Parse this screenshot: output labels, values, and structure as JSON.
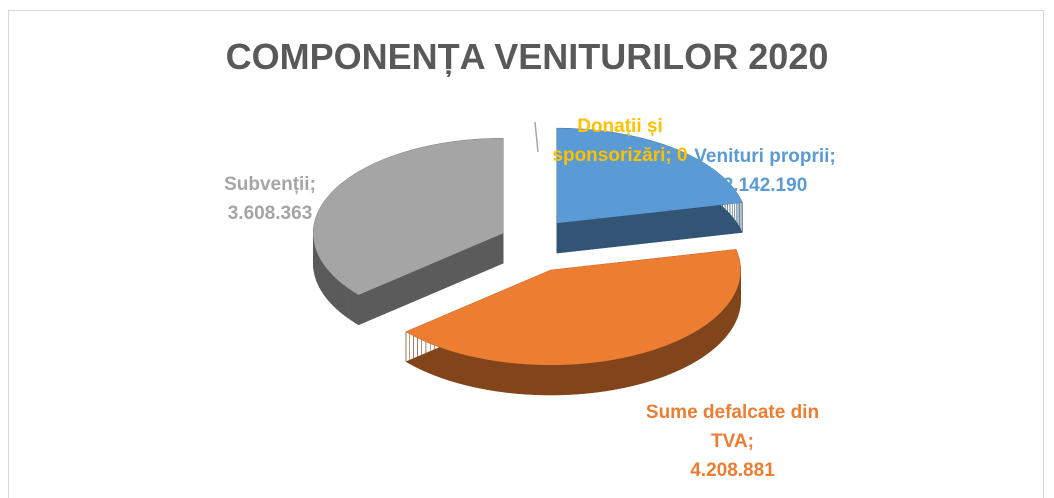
{
  "chart_data": {
    "type": "pie3d",
    "title": "COMPONENȚA VENITURILOR 2020",
    "categories": [
      "Venituri proprii",
      "Sume defalcate din TVA",
      "Subvenții",
      "Donații și sponsorizări"
    ],
    "values": [
      2142190,
      4208881,
      3608363,
      0
    ],
    "value_labels": [
      "2.142.190",
      "4.208.881",
      "3.608.363",
      "0"
    ],
    "label_separator": ";",
    "colors": [
      "#5b9bd5",
      "#ed7d31",
      "#a5a5a5",
      "#ffc000"
    ]
  }
}
